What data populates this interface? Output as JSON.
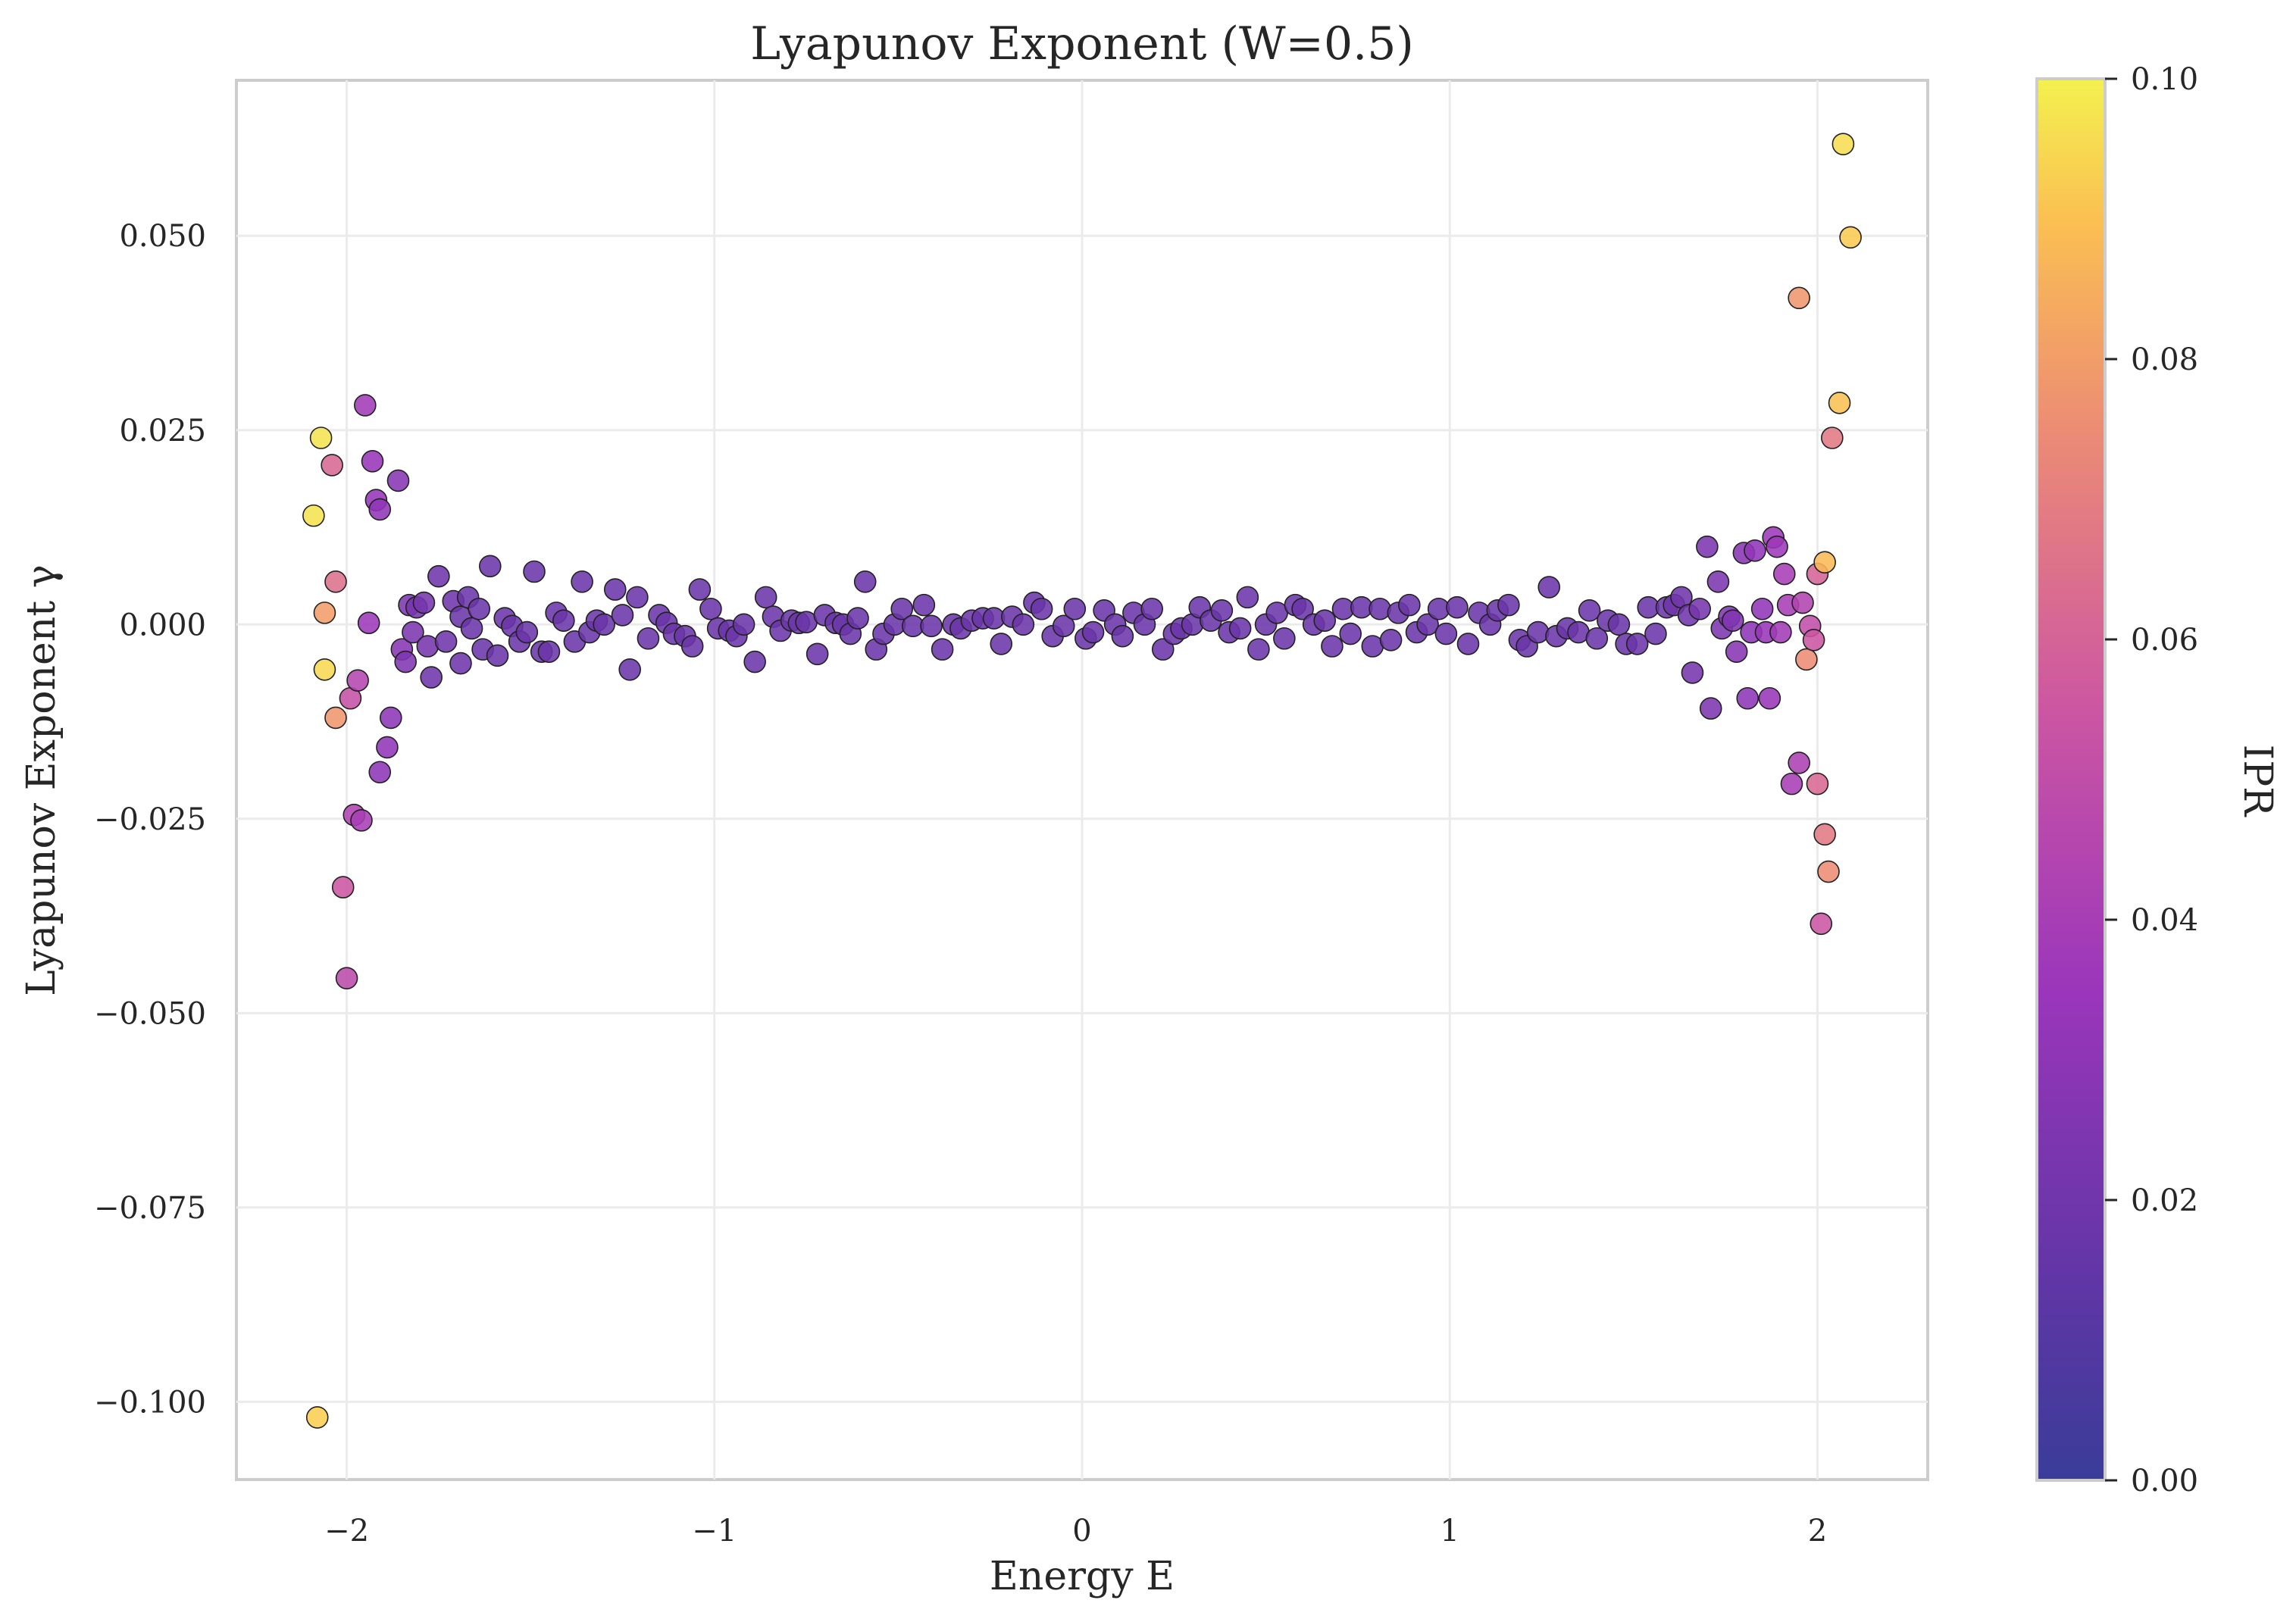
{
  "chart_data": {
    "type": "scatter",
    "title": "Lyapunov Exponent (W=0.5)",
    "xlabel": "Energy E",
    "ylabel": "Lyapunov Exponent γ",
    "xlim": [
      -2.3,
      2.3
    ],
    "ylim": [
      -0.11,
      0.07
    ],
    "xticks": [
      -2,
      -1,
      0,
      1,
      2
    ],
    "xtick_labels": [
      "−2",
      "−1",
      "0",
      "1",
      "2"
    ],
    "yticks": [
      -0.1,
      -0.075,
      -0.05,
      -0.025,
      0.0,
      0.025,
      0.05
    ],
    "ytick_labels": [
      "−0.100",
      "−0.075",
      "−0.050",
      "−0.025",
      "0.000",
      "0.025",
      "0.050"
    ],
    "grid": true,
    "colormap": "plasma",
    "colorbar": {
      "label": "IPR",
      "range": [
        0.0,
        0.1
      ],
      "ticks": [
        0.0,
        0.02,
        0.04,
        0.06,
        0.08,
        0.1
      ],
      "tick_labels": [
        "0.00",
        "0.02",
        "0.04",
        "0.06",
        "0.08",
        "0.10"
      ]
    },
    "points": [
      [
        -2.09,
        0.014,
        0.097
      ],
      [
        -2.07,
        0.024,
        0.097
      ],
      [
        -2.06,
        0.0015,
        0.08
      ],
      [
        -2.06,
        -0.0058,
        0.095
      ],
      [
        -2.08,
        -0.102,
        0.093
      ],
      [
        -2.04,
        0.0205,
        0.062
      ],
      [
        -2.03,
        0.0055,
        0.065
      ],
      [
        -2.03,
        -0.012,
        0.078
      ],
      [
        -2.01,
        -0.0338,
        0.055
      ],
      [
        -2.0,
        -0.0455,
        0.048
      ],
      [
        -1.99,
        -0.0095,
        0.052
      ],
      [
        -1.98,
        -0.0245,
        0.043
      ],
      [
        -1.97,
        -0.0072,
        0.045
      ],
      [
        -1.96,
        -0.0252,
        0.04
      ],
      [
        -1.95,
        0.0282,
        0.038
      ],
      [
        -1.94,
        0.0002,
        0.036
      ],
      [
        -1.93,
        0.021,
        0.034
      ],
      [
        -1.92,
        0.016,
        0.033
      ],
      [
        -1.91,
        0.0148,
        0.032
      ],
      [
        -1.91,
        -0.019,
        0.03
      ],
      [
        -1.89,
        -0.0158,
        0.032
      ],
      [
        -1.88,
        -0.012,
        0.03
      ],
      [
        -1.86,
        0.0185,
        0.028
      ],
      [
        -1.85,
        -0.0032,
        0.028
      ],
      [
        -1.84,
        -0.0048,
        0.026
      ],
      [
        -1.83,
        0.0025,
        0.024
      ],
      [
        -1.82,
        -0.001,
        0.024
      ],
      [
        -1.81,
        0.0022,
        0.022
      ],
      [
        -1.79,
        0.0028,
        0.022
      ],
      [
        -1.78,
        -0.0028,
        0.022
      ],
      [
        -1.77,
        -0.0068,
        0.02
      ],
      [
        -1.75,
        0.0062,
        0.02
      ],
      [
        -1.73,
        -0.0022,
        0.02
      ],
      [
        -1.71,
        0.003,
        0.02
      ],
      [
        -1.69,
        -0.005,
        0.02
      ],
      [
        -1.69,
        0.001,
        0.018
      ],
      [
        -1.67,
        0.0035,
        0.018
      ],
      [
        -1.66,
        -0.0005,
        0.018
      ],
      [
        -1.64,
        0.002,
        0.018
      ],
      [
        -1.63,
        -0.0032,
        0.018
      ],
      [
        -1.61,
        0.0075,
        0.018
      ],
      [
        -1.59,
        -0.004,
        0.018
      ],
      [
        -1.57,
        0.0008,
        0.018
      ],
      [
        -1.55,
        -0.0002,
        0.018
      ],
      [
        -1.53,
        -0.0022,
        0.018
      ],
      [
        -1.51,
        -0.001,
        0.018
      ],
      [
        -1.49,
        0.0068,
        0.018
      ],
      [
        -1.47,
        -0.0035,
        0.018
      ],
      [
        -1.45,
        -0.0035,
        0.018
      ],
      [
        -1.43,
        0.0015,
        0.018
      ],
      [
        -1.41,
        0.0005,
        0.018
      ],
      [
        -1.38,
        -0.0022,
        0.018
      ],
      [
        -1.36,
        0.0055,
        0.018
      ],
      [
        -1.34,
        -0.001,
        0.018
      ],
      [
        -1.32,
        0.0005,
        0.018
      ],
      [
        -1.3,
        0.0,
        0.018
      ],
      [
        -1.27,
        0.0045,
        0.018
      ],
      [
        -1.25,
        0.0012,
        0.018
      ],
      [
        -1.23,
        -0.0058,
        0.018
      ],
      [
        -1.21,
        0.0035,
        0.018
      ],
      [
        -1.18,
        -0.0018,
        0.018
      ],
      [
        -1.15,
        0.0012,
        0.018
      ],
      [
        -1.13,
        0.0002,
        0.018
      ],
      [
        -1.11,
        -0.0012,
        0.018
      ],
      [
        -1.08,
        -0.0015,
        0.018
      ],
      [
        -1.06,
        -0.0028,
        0.018
      ],
      [
        -1.04,
        0.0045,
        0.018
      ],
      [
        -1.01,
        0.002,
        0.018
      ],
      [
        -0.99,
        -0.0005,
        0.018
      ],
      [
        -0.96,
        -0.0008,
        0.018
      ],
      [
        -0.94,
        -0.0015,
        0.018
      ],
      [
        -0.92,
        0.0,
        0.018
      ],
      [
        -0.89,
        -0.0048,
        0.018
      ],
      [
        -0.86,
        0.0035,
        0.018
      ],
      [
        -0.84,
        0.001,
        0.018
      ],
      [
        -0.82,
        -0.0008,
        0.018
      ],
      [
        -0.79,
        0.0005,
        0.018
      ],
      [
        -0.77,
        0.0002,
        0.018
      ],
      [
        -0.75,
        0.0003,
        0.018
      ],
      [
        -0.72,
        -0.0038,
        0.018
      ],
      [
        -0.7,
        0.0012,
        0.018
      ],
      [
        -0.67,
        0.0002,
        0.018
      ],
      [
        -0.65,
        0.0,
        0.018
      ],
      [
        -0.63,
        -0.0012,
        0.018
      ],
      [
        -0.61,
        0.0008,
        0.018
      ],
      [
        -0.59,
        0.0055,
        0.018
      ],
      [
        -0.56,
        -0.0032,
        0.018
      ],
      [
        -0.54,
        -0.0012,
        0.018
      ],
      [
        -0.51,
        0.0,
        0.018
      ],
      [
        -0.49,
        0.002,
        0.018
      ],
      [
        -0.46,
        -0.0002,
        0.018
      ],
      [
        -0.43,
        0.0025,
        0.018
      ],
      [
        -0.41,
        -0.0002,
        0.018
      ],
      [
        -0.38,
        -0.0032,
        0.018
      ],
      [
        -0.35,
        0.0,
        0.018
      ],
      [
        -0.33,
        -0.0005,
        0.018
      ],
      [
        -0.3,
        0.0005,
        0.018
      ],
      [
        -0.27,
        0.0008,
        0.018
      ],
      [
        -0.24,
        0.0008,
        0.018
      ],
      [
        -0.22,
        -0.0025,
        0.018
      ],
      [
        -0.19,
        0.001,
        0.018
      ],
      [
        -0.16,
        0.0,
        0.018
      ],
      [
        -0.13,
        0.0028,
        0.018
      ],
      [
        -0.11,
        0.002,
        0.018
      ],
      [
        -0.08,
        -0.0015,
        0.018
      ],
      [
        -0.05,
        -0.0002,
        0.018
      ],
      [
        -0.02,
        0.002,
        0.018
      ],
      [
        0.01,
        -0.0018,
        0.018
      ],
      [
        0.03,
        -0.001,
        0.018
      ],
      [
        0.06,
        0.0018,
        0.018
      ],
      [
        0.09,
        0.0,
        0.018
      ],
      [
        0.11,
        -0.0015,
        0.018
      ],
      [
        0.14,
        0.0015,
        0.018
      ],
      [
        0.17,
        0.0,
        0.018
      ],
      [
        0.19,
        0.002,
        0.018
      ],
      [
        0.22,
        -0.0032,
        0.018
      ],
      [
        0.25,
        -0.0012,
        0.018
      ],
      [
        0.27,
        -0.0005,
        0.018
      ],
      [
        0.3,
        0.0,
        0.018
      ],
      [
        0.32,
        0.0022,
        0.018
      ],
      [
        0.35,
        0.0005,
        0.018
      ],
      [
        0.38,
        0.0018,
        0.018
      ],
      [
        0.4,
        -0.001,
        0.018
      ],
      [
        0.43,
        -0.0005,
        0.018
      ],
      [
        0.45,
        0.0035,
        0.018
      ],
      [
        0.48,
        -0.0032,
        0.018
      ],
      [
        0.5,
        0.0,
        0.018
      ],
      [
        0.53,
        0.0015,
        0.018
      ],
      [
        0.55,
        -0.0018,
        0.018
      ],
      [
        0.58,
        0.0025,
        0.018
      ],
      [
        0.6,
        0.002,
        0.018
      ],
      [
        0.63,
        0.0,
        0.018
      ],
      [
        0.66,
        0.0005,
        0.018
      ],
      [
        0.68,
        -0.0028,
        0.018
      ],
      [
        0.71,
        0.002,
        0.018
      ],
      [
        0.73,
        -0.0012,
        0.018
      ],
      [
        0.76,
        0.0022,
        0.018
      ],
      [
        0.79,
        -0.0028,
        0.018
      ],
      [
        0.81,
        0.002,
        0.018
      ],
      [
        0.84,
        -0.002,
        0.018
      ],
      [
        0.86,
        0.0015,
        0.018
      ],
      [
        0.89,
        0.0025,
        0.018
      ],
      [
        0.91,
        -0.001,
        0.018
      ],
      [
        0.94,
        0.0,
        0.018
      ],
      [
        0.97,
        0.002,
        0.018
      ],
      [
        0.99,
        -0.0012,
        0.018
      ],
      [
        1.02,
        0.0022,
        0.018
      ],
      [
        1.05,
        -0.0025,
        0.018
      ],
      [
        1.08,
        0.0015,
        0.018
      ],
      [
        1.11,
        0.0,
        0.018
      ],
      [
        1.13,
        0.0018,
        0.018
      ],
      [
        1.16,
        0.0025,
        0.018
      ],
      [
        1.19,
        -0.002,
        0.018
      ],
      [
        1.21,
        -0.0028,
        0.018
      ],
      [
        1.24,
        -0.001,
        0.018
      ],
      [
        1.27,
        0.0048,
        0.018
      ],
      [
        1.29,
        -0.0015,
        0.018
      ],
      [
        1.32,
        -0.0005,
        0.018
      ],
      [
        1.35,
        -0.001,
        0.018
      ],
      [
        1.38,
        0.0018,
        0.018
      ],
      [
        1.4,
        -0.0018,
        0.018
      ],
      [
        1.43,
        0.0005,
        0.018
      ],
      [
        1.46,
        0.0,
        0.018
      ],
      [
        1.48,
        -0.0025,
        0.018
      ],
      [
        1.51,
        -0.0025,
        0.018
      ],
      [
        1.54,
        0.0022,
        0.018
      ],
      [
        1.56,
        -0.0012,
        0.018
      ],
      [
        1.59,
        0.0022,
        0.018
      ],
      [
        1.61,
        0.0025,
        0.02
      ],
      [
        1.63,
        0.0035,
        0.02
      ],
      [
        1.65,
        0.0012,
        0.02
      ],
      [
        1.66,
        -0.0062,
        0.022
      ],
      [
        1.68,
        0.002,
        0.022
      ],
      [
        1.7,
        0.01,
        0.024
      ],
      [
        1.71,
        -0.0108,
        0.024
      ],
      [
        1.73,
        0.0055,
        0.024
      ],
      [
        1.74,
        -0.0005,
        0.024
      ],
      [
        1.76,
        0.001,
        0.026
      ],
      [
        1.77,
        0.0005,
        0.026
      ],
      [
        1.78,
        -0.0035,
        0.028
      ],
      [
        1.8,
        0.0092,
        0.028
      ],
      [
        1.81,
        -0.0095,
        0.03
      ],
      [
        1.82,
        -0.001,
        0.03
      ],
      [
        1.83,
        0.0095,
        0.032
      ],
      [
        1.85,
        0.002,
        0.032
      ],
      [
        1.86,
        -0.001,
        0.034
      ],
      [
        1.87,
        -0.0095,
        0.034
      ],
      [
        1.88,
        0.0112,
        0.036
      ],
      [
        1.89,
        0.01,
        0.036
      ],
      [
        1.9,
        -0.001,
        0.038
      ],
      [
        1.91,
        0.0065,
        0.04
      ],
      [
        1.92,
        0.0025,
        0.04
      ],
      [
        1.93,
        -0.0205,
        0.04
      ],
      [
        1.95,
        -0.0178,
        0.042
      ],
      [
        1.95,
        0.042,
        0.078
      ],
      [
        1.96,
        0.0028,
        0.044
      ],
      [
        1.97,
        -0.0045,
        0.075
      ],
      [
        1.98,
        -0.0002,
        0.05
      ],
      [
        1.99,
        -0.002,
        0.055
      ],
      [
        2.0,
        0.0065,
        0.06
      ],
      [
        2.0,
        -0.0205,
        0.062
      ],
      [
        2.01,
        -0.0385,
        0.055
      ],
      [
        2.02,
        0.008,
        0.088
      ],
      [
        2.02,
        -0.027,
        0.068
      ],
      [
        2.03,
        -0.0318,
        0.075
      ],
      [
        2.04,
        0.024,
        0.068
      ],
      [
        2.06,
        0.0285,
        0.09
      ],
      [
        2.07,
        0.0618,
        0.096
      ],
      [
        2.09,
        0.0498,
        0.092
      ]
    ]
  }
}
